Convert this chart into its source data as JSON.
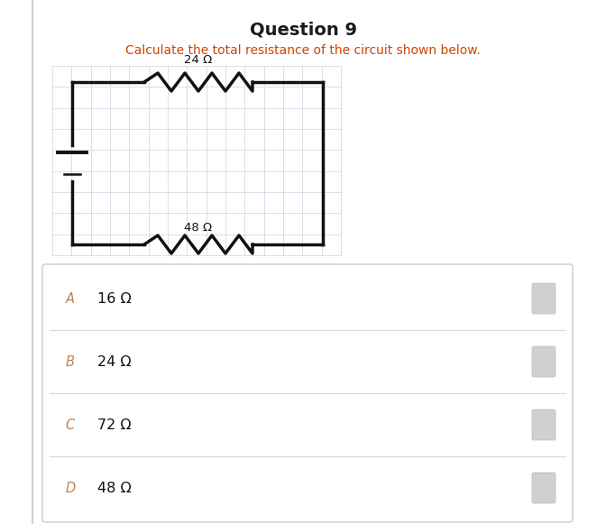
{
  "title": "Question 9",
  "subtitle": "Calculate the total resistance of the circuit shown below.",
  "title_color": "#1a1a1a",
  "subtitle_color": "#cc4400",
  "resistor_top_label": "24 Ω",
  "resistor_bottom_label": "48 Ω",
  "options": [
    {
      "letter": "A",
      "text": "16 Ω"
    },
    {
      "letter": "B",
      "text": "24 Ω"
    },
    {
      "letter": "C",
      "text": "72 Ω"
    },
    {
      "letter": "D",
      "text": "48 Ω"
    }
  ],
  "bg_color": "#ffffff",
  "grid_color": "#c8d4e0",
  "circuit_color": "#111111",
  "option_divider_color": "#d8d8d8",
  "option_letter_color": "#c08050",
  "option_text_color": "#111111",
  "option_bg_color": "#f5f5f5",
  "option_box_edge": "#cccccc",
  "radio_color": "#d0d0d0",
  "left_border_color": "#d0d0d0"
}
